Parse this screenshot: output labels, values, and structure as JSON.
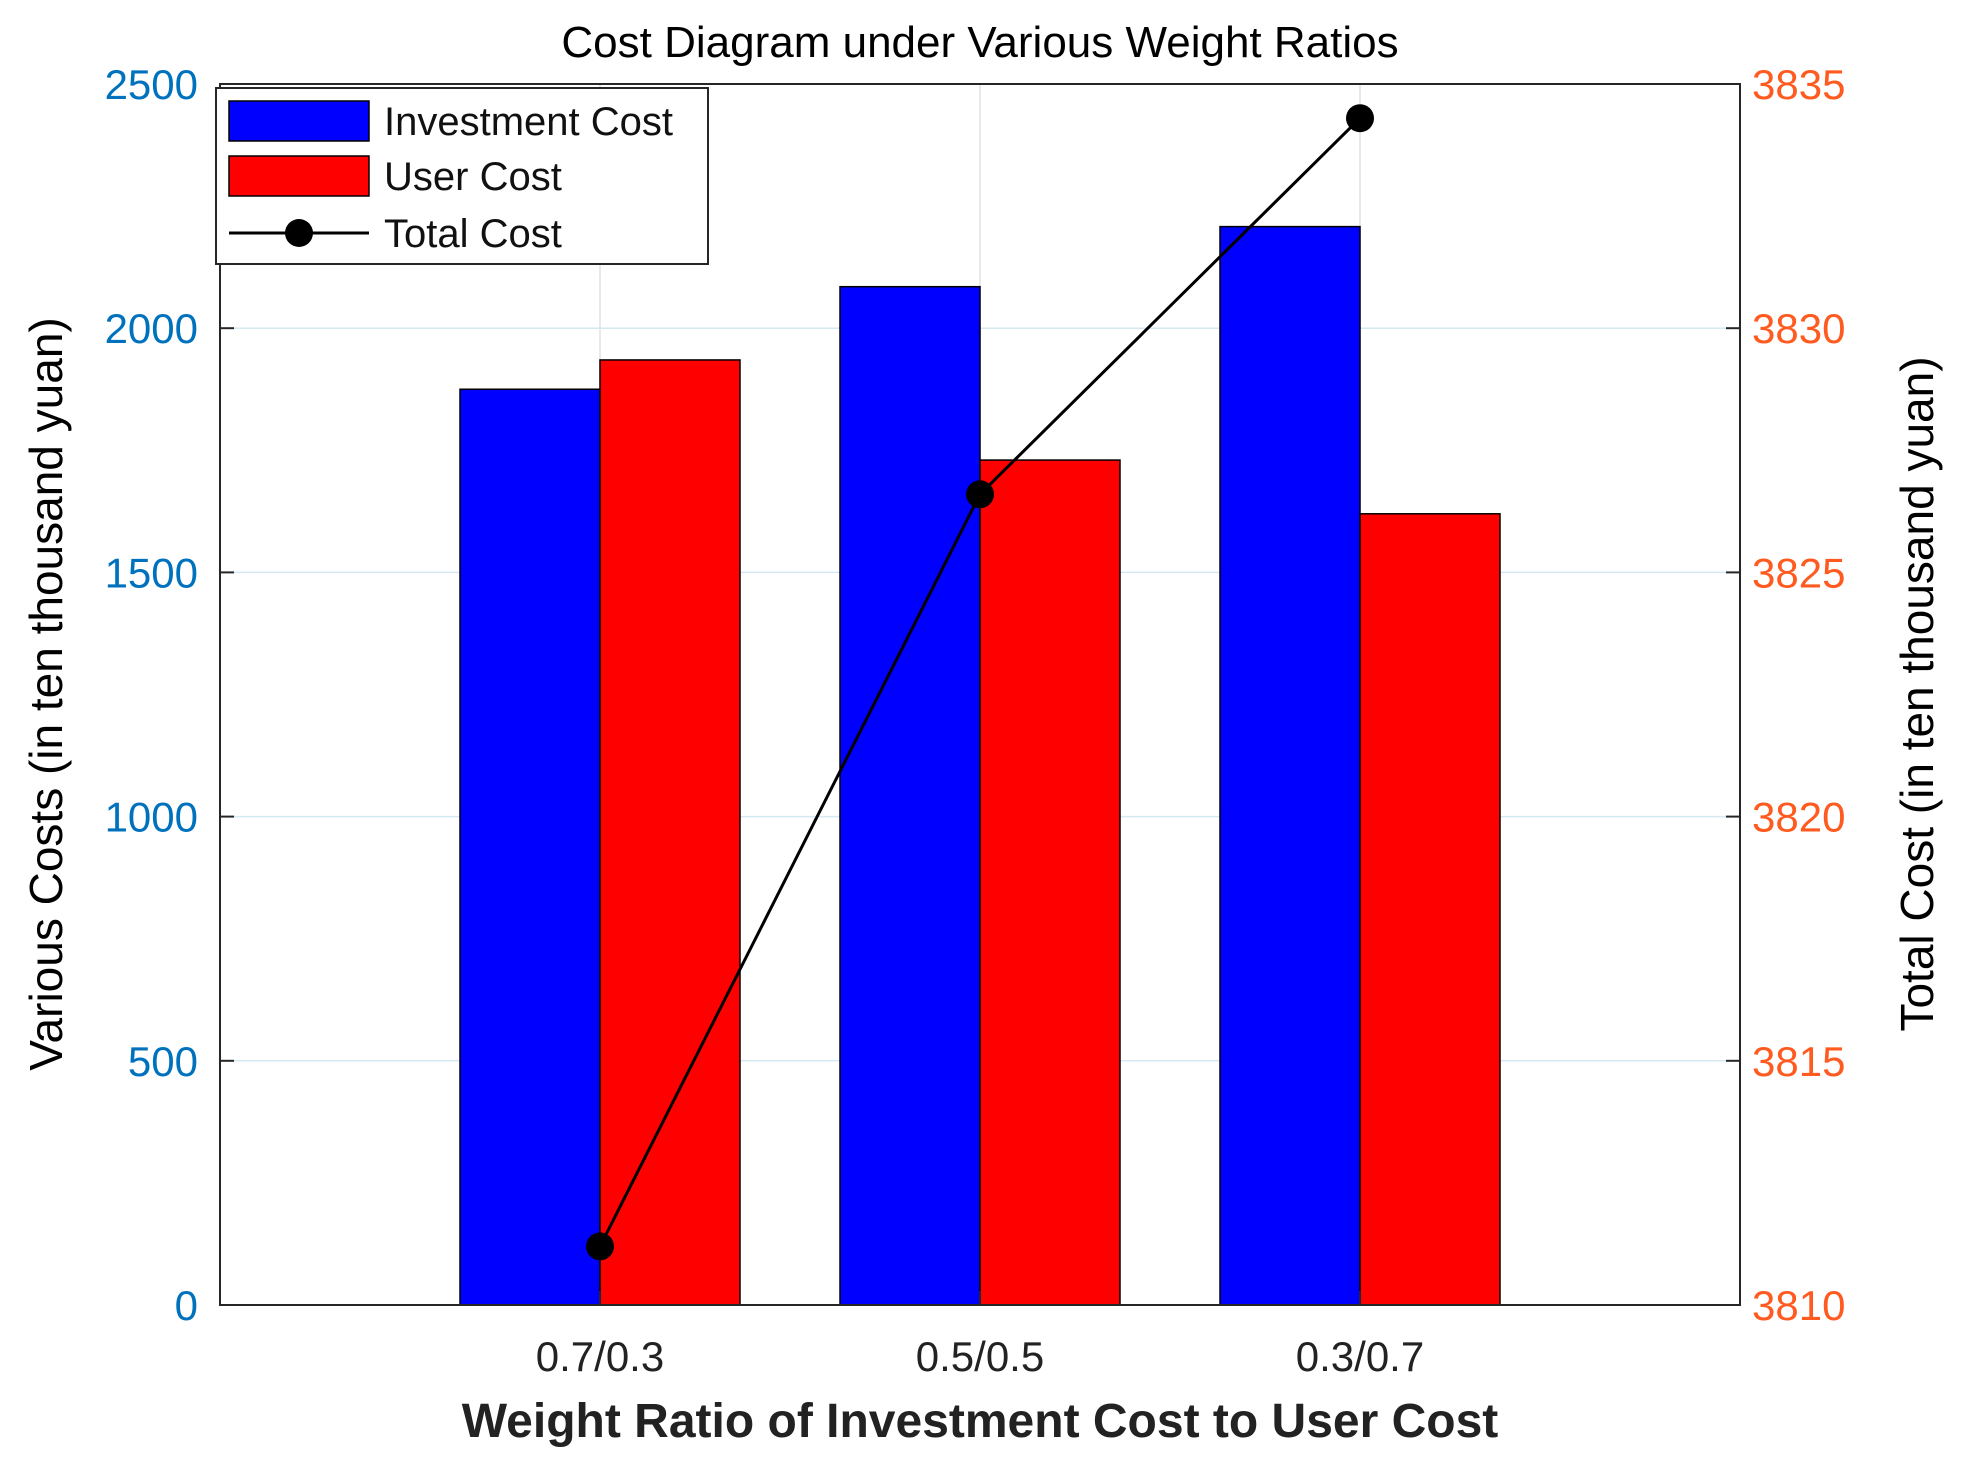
{
  "chart_data": {
    "type": "bar",
    "title": "Cost Diagram under Various Weight Ratios",
    "xlabel": "Weight Ratio of Investment Cost to User Cost",
    "ylabel_left": "Various Costs (in ten thousand yuan)",
    "ylabel_right": "Total Cost (in ten thousand yuan)",
    "categories": [
      "0.7/0.3",
      "0.5/0.5",
      "0.3/0.7"
    ],
    "ylim_left": [
      0,
      2500
    ],
    "yticks_left": [
      "0",
      "500",
      "1000",
      "1500",
      "2000",
      "2500"
    ],
    "ylim_right": [
      3810,
      3835
    ],
    "yticks_right": [
      "3810",
      "3815",
      "3820",
      "3825",
      "3830",
      "3835"
    ],
    "series": [
      {
        "name": "Investment Cost",
        "type": "bar",
        "axis": "left",
        "color": "#0000ff",
        "values": [
          1875,
          2085,
          2208
        ]
      },
      {
        "name": "User Cost",
        "type": "bar",
        "axis": "left",
        "color": "#ff0000",
        "values": [
          1935,
          1730,
          1620
        ]
      },
      {
        "name": "Total Cost",
        "type": "line",
        "axis": "right",
        "color": "#000000",
        "values": [
          3811.2,
          3826.6,
          3834.3
        ]
      }
    ],
    "grid": true,
    "legend_position": "top-left",
    "left_axis_color": "#0072bd",
    "right_axis_color": "#ff5a1f"
  }
}
